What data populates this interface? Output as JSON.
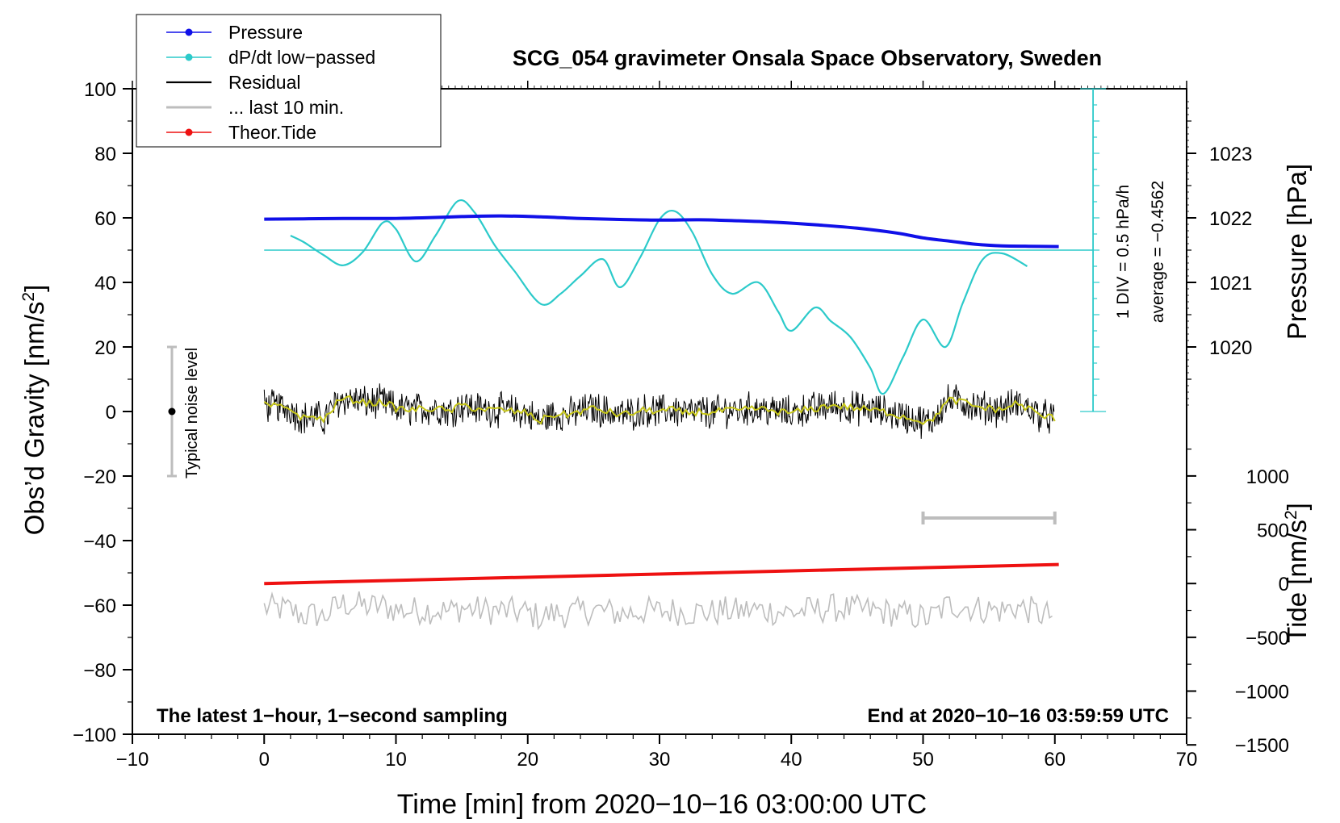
{
  "chart_data": {
    "type": "line",
    "title": "SCG_054 gravimeter Onsala Space Observatory, Sweden",
    "xlabel": "Time [min] from 2020−10−16 03:00:00 UTC",
    "ylabel_left_main": "Obs’d Gravity [nm/s",
    "ylabel_left_sup": "2",
    "ylabel_left_end": "]",
    "ylabel_right_pressure": "Pressure [hPa]",
    "ylabel_right_tide_main": "Tide [nm/s",
    "ylabel_right_tide_sup": "2",
    "ylabel_right_tide_end": "]",
    "xlim": [
      -10,
      70
    ],
    "ylim": [
      -100,
      100
    ],
    "x_ticks": [
      -10,
      0,
      10,
      20,
      30,
      40,
      50,
      60,
      70
    ],
    "x_tick_labels": [
      "−10",
      "0",
      "10",
      "20",
      "30",
      "40",
      "50",
      "60",
      "70"
    ],
    "y_ticks": [
      -100,
      -80,
      -60,
      -40,
      -20,
      0,
      20,
      40,
      60,
      80,
      100
    ],
    "y_tick_labels": [
      "−100",
      "−80",
      "−60",
      "−40",
      "−20",
      "0",
      "20",
      "40",
      "60",
      "80",
      "100"
    ],
    "pressure_axis": {
      "ticks": [
        1020,
        1021,
        1022,
        1023
      ],
      "tick_labels": [
        "1020",
        "1021",
        "1022",
        "1023"
      ],
      "ref_value": 1022,
      "ref_gravity": 60,
      "gravity_per_hPa": 20
    },
    "tide_axis": {
      "ticks": [
        -1500,
        -1000,
        -500,
        0,
        500,
        1000
      ],
      "tick_labels": [
        "−1500",
        "−1000",
        "−500",
        "0",
        "500",
        "1000"
      ],
      "gravity_at_zero": -53.3,
      "gravity_per_unit": 0.03333
    },
    "legend": {
      "placement": "top-left",
      "entries": [
        {
          "label": "Pressure",
          "color": "#1010e8",
          "marker": true
        },
        {
          "label": "dP/dt low−passed",
          "color": "#2ccaca",
          "marker": true
        },
        {
          "label": "Residual",
          "color": "#000000",
          "marker": false
        },
        {
          "label": "... last 10 min.",
          "color": "#bdbdbd",
          "marker": false
        },
        {
          "label": "Theor.Tide",
          "color": "#ee1111",
          "marker": true
        }
      ]
    },
    "annotations": {
      "bottom_left": "The latest 1−hour, 1−second sampling",
      "bottom_right": "End at 2020−10−16 03:59:59 UTC",
      "noise_label": "Typical noise level",
      "div_label": "1 DIV = 0.5 hPa/h",
      "average_label": "average = −0.4562"
    },
    "noise_bar": {
      "x": -7,
      "center": 0,
      "low": -20,
      "high": 20
    },
    "dpdt_axis": {
      "x": 62.9,
      "low": 0,
      "high": 100,
      "baseline": 50,
      "minor_step": 5,
      "major_step": 10
    },
    "window_bar": {
      "x_start": 50,
      "x_end": 60,
      "y": -33
    },
    "series": [
      {
        "name": "Pressure",
        "color": "#1010e8",
        "x": [
          0,
          3,
          6,
          9,
          12,
          15,
          18,
          21,
          24,
          27,
          30,
          33,
          36,
          39,
          42,
          45,
          48,
          50,
          52,
          54,
          56,
          58,
          60.3
        ],
        "y": [
          59.6,
          59.7,
          59.8,
          59.8,
          60.0,
          60.4,
          60.6,
          60.3,
          59.8,
          59.5,
          59.3,
          59.4,
          59.1,
          58.6,
          57.8,
          56.8,
          55.3,
          53.8,
          52.8,
          51.8,
          51.3,
          51.2,
          51.1
        ]
      },
      {
        "name": "dP/dt low−passed",
        "color": "#2ccaca",
        "x": [
          2,
          3,
          4.5,
          6,
          7.5,
          9,
          10,
          11.5,
          13,
          14.7,
          16,
          17.5,
          19,
          21,
          22.5,
          24,
          25.7,
          27,
          28.5,
          30,
          31.2,
          32.5,
          34,
          35.5,
          37.5,
          39,
          40,
          41.8,
          43,
          44.5,
          46,
          47,
          48.5,
          50,
          51.7,
          53,
          54.5,
          56,
          57.9
        ],
        "y": [
          54.5,
          52.5,
          48.5,
          45.3,
          49.5,
          58.5,
          56.5,
          46.5,
          54.5,
          65.2,
          61.5,
          51.5,
          43.5,
          33.3,
          36.5,
          42.0,
          47.2,
          38.5,
          47.5,
          59.5,
          62.0,
          55.5,
          42.5,
          36.5,
          40.0,
          31.0,
          25.0,
          32.2,
          28.0,
          23.0,
          13.5,
          5.5,
          17.0,
          28.5,
          20.0,
          33.5,
          47.0,
          49.0,
          45.0
        ]
      },
      {
        "name": "Residual smooth",
        "color": "#c8c818",
        "x": [
          0,
          1,
          2,
          2.5,
          3,
          4,
          4.5,
          5,
          5.5,
          6,
          7,
          8,
          9,
          10,
          11,
          12,
          13,
          14,
          15,
          16,
          17,
          18,
          19,
          20,
          20.5,
          21,
          21.5,
          22,
          23,
          24,
          25,
          26,
          27,
          28,
          29,
          30,
          31,
          32,
          33,
          34,
          35,
          36,
          37,
          38,
          39,
          40,
          41,
          42,
          43,
          44,
          45,
          46,
          47,
          48,
          49,
          50,
          50.5,
          51,
          51.5,
          52,
          53,
          54,
          55,
          56,
          57,
          58,
          59,
          60
        ],
        "y": [
          2,
          1.5,
          1,
          -1,
          -2,
          -1.5,
          -3,
          0,
          2.5,
          4,
          3.5,
          2.5,
          3,
          1,
          0.5,
          0.8,
          1,
          0,
          2,
          1,
          0.5,
          0.5,
          0,
          -0.5,
          -2,
          -3,
          -1.5,
          -1,
          -1,
          0,
          1,
          0,
          -1,
          -0.5,
          0.5,
          0,
          0.5,
          -0.5,
          0,
          -0.5,
          0.5,
          0,
          1,
          0.5,
          0,
          -0.5,
          0.5,
          1,
          2,
          1.5,
          1,
          0.5,
          0,
          -1,
          -2,
          -3,
          -3.5,
          -1,
          1.5,
          3.5,
          3,
          1.5,
          1,
          0.5,
          2.5,
          1,
          -1.5,
          -2
        ]
      },
      {
        "name": "Theor.Tide",
        "color": "#ee1111",
        "x": [
          0,
          60.3
        ],
        "y": [
          -53.3,
          -47.4
        ]
      }
    ]
  }
}
